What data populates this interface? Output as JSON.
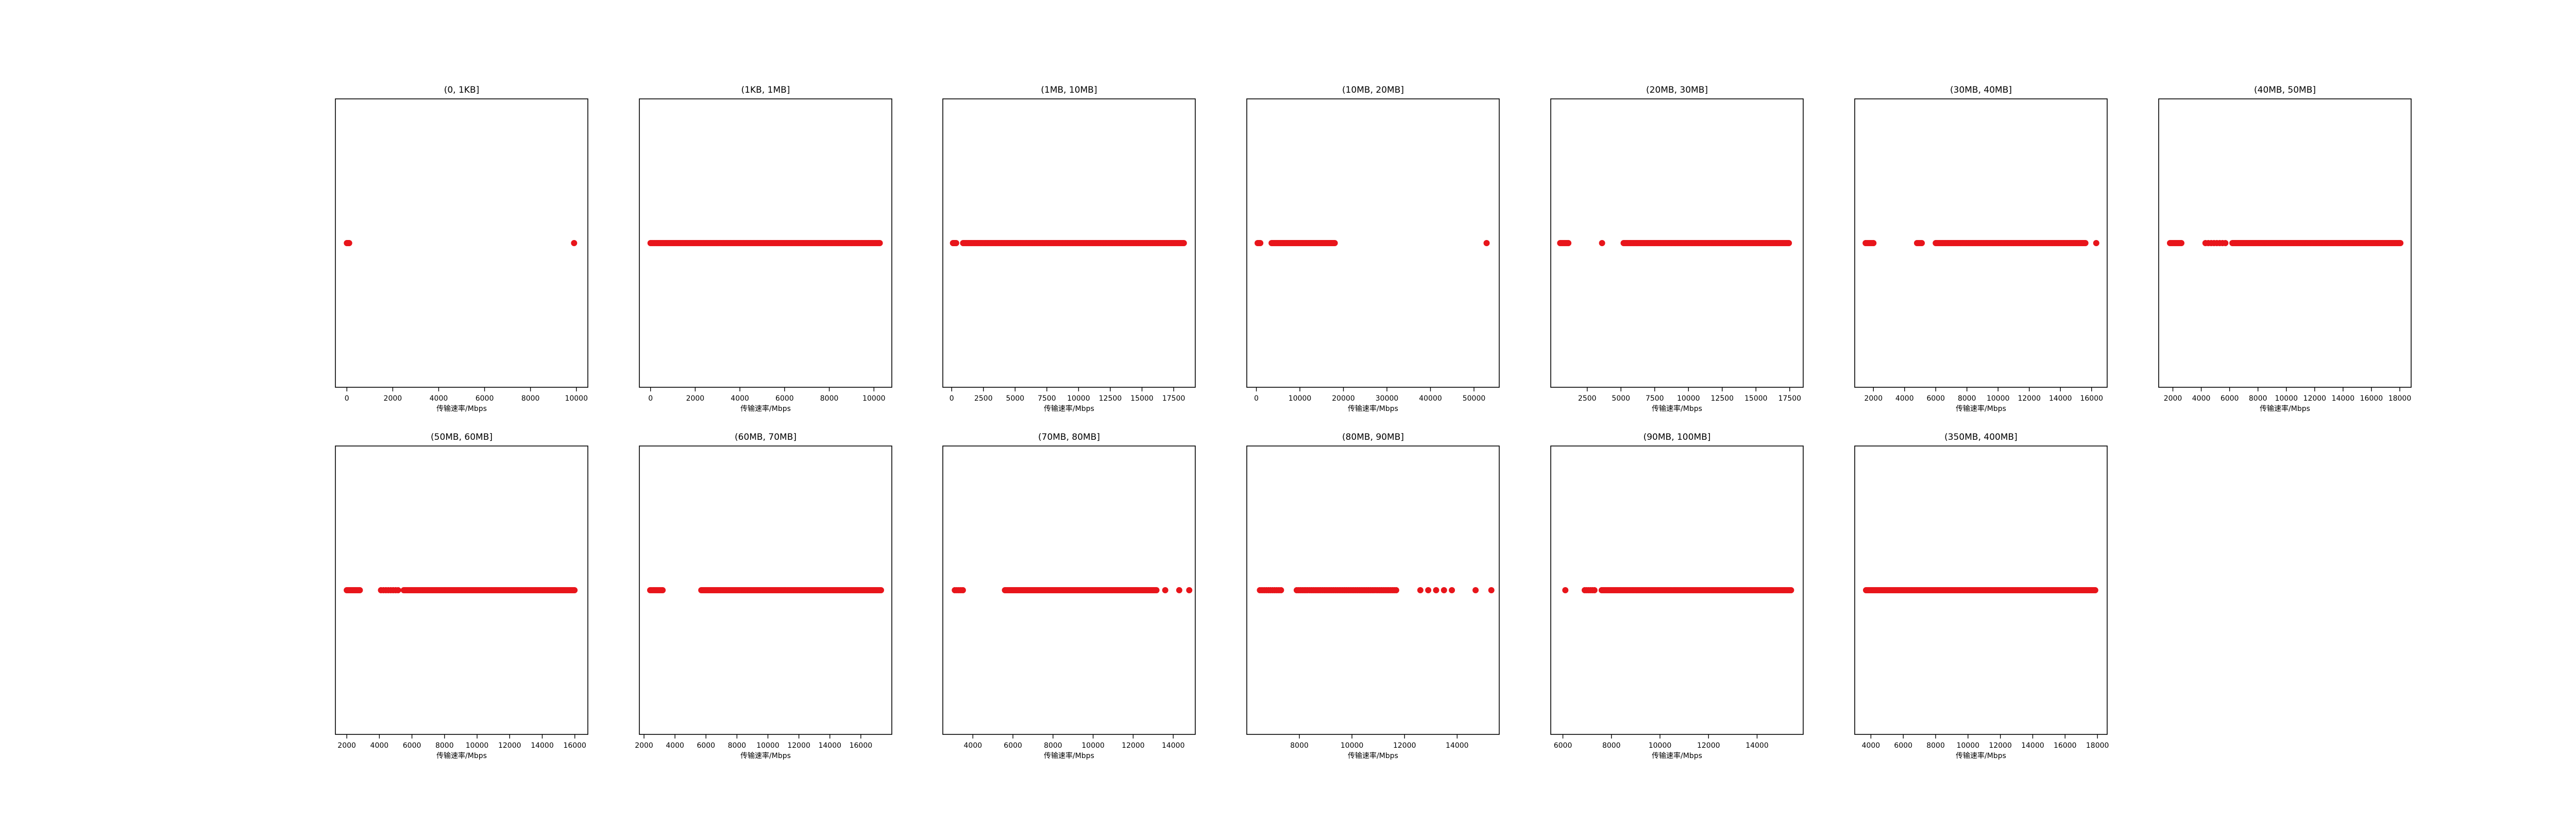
{
  "figure": {
    "point_color": "#e8151b"
  },
  "chart_data": [
    {
      "type": "scatter",
      "title": "(0, 1KB]",
      "xlabel": "传输速率/Mbps",
      "xlim": [
        -500,
        10500
      ],
      "xticks": [
        0,
        2000,
        4000,
        6000,
        8000,
        10000
      ],
      "xtick_labels": [
        "0",
        "2000",
        "4000",
        "6000",
        "8000",
        "10000"
      ],
      "y_value": 0,
      "points": [
        {
          "x": [
            0,
            100
          ],
          "step": 20
        },
        {
          "x": [
            9900
          ],
          "step": 20
        }
      ]
    },
    {
      "type": "scatter",
      "title": "(1KB, 1MB]",
      "xlabel": "传输速率/Mbps",
      "xlim": [
        -500,
        10800
      ],
      "xticks": [
        0,
        2000,
        4000,
        6000,
        8000,
        10000
      ],
      "xtick_labels": [
        "0",
        "2000",
        "4000",
        "6000",
        "8000",
        "10000"
      ],
      "y_value": 0,
      "points": [
        {
          "x": [
            0,
            10300
          ],
          "step": 60
        }
      ]
    },
    {
      "type": "scatter",
      "title": "(1MB, 10MB]",
      "xlabel": "传输速率/Mbps",
      "xlim": [
        -700,
        19200
      ],
      "xticks": [
        0,
        2500,
        5000,
        7500,
        10000,
        12500,
        15000,
        17500
      ],
      "xtick_labels": [
        "0",
        "2500",
        "5000",
        "7500",
        "10000",
        "12500",
        "15000",
        "17500"
      ],
      "y_value": 0,
      "points": [
        {
          "x": [
            100,
            350
          ],
          "step": 50
        },
        {
          "x": [
            900,
            18300
          ],
          "step": 100
        }
      ]
    },
    {
      "type": "scatter",
      "title": "(10MB, 20MB]",
      "xlabel": "传输速率/Mbps",
      "xlim": [
        -2200,
        55800
      ],
      "xticks": [
        0,
        10000,
        20000,
        30000,
        40000,
        50000
      ],
      "xtick_labels": [
        "0",
        "10000",
        "20000",
        "30000",
        "40000",
        "50000"
      ],
      "y_value": 0,
      "points": [
        {
          "x": [
            300,
            1000
          ],
          "step": 200
        },
        {
          "x": [
            3500,
            18000
          ],
          "step": 250
        },
        {
          "x": [
            52900
          ],
          "step": 250
        }
      ]
    },
    {
      "type": "scatter",
      "title": "(20MB, 30MB]",
      "xlabel": "传输速率/Mbps",
      "xlim": [
        -200,
        18500
      ],
      "xticks": [
        2500,
        5000,
        7500,
        10000,
        12500,
        15000,
        17500
      ],
      "xtick_labels": [
        "2500",
        "5000",
        "7500",
        "10000",
        "12500",
        "15000",
        "17500"
      ],
      "y_value": 0,
      "points": [
        {
          "x": [
            500,
            1100
          ],
          "step": 100
        },
        {
          "x": [
            3600
          ],
          "step": 100
        },
        {
          "x": [
            5200,
            17500
          ],
          "step": 90
        }
      ]
    },
    {
      "type": "scatter",
      "title": "(30MB, 40MB]",
      "xlabel": "传输速率/Mbps",
      "xlim": [
        800,
        17000
      ],
      "xticks": [
        2000,
        4000,
        6000,
        8000,
        10000,
        12000,
        14000,
        16000
      ],
      "xtick_labels": [
        "2000",
        "4000",
        "6000",
        "8000",
        "10000",
        "12000",
        "14000",
        "16000"
      ],
      "y_value": 0,
      "points": [
        {
          "x": [
            1500,
            2000
          ],
          "step": 100
        },
        {
          "x": [
            4800,
            5100
          ],
          "step": 100
        },
        {
          "x": [
            6000,
            15600
          ],
          "step": 80
        },
        {
          "x": [
            16300
          ],
          "step": 80
        }
      ]
    },
    {
      "type": "scatter",
      "title": "(40MB, 50MB]",
      "xlabel": "传输速率/Mbps",
      "xlim": [
        1000,
        18800
      ],
      "xticks": [
        2000,
        4000,
        6000,
        8000,
        10000,
        12000,
        14000,
        16000,
        18000
      ],
      "xtick_labels": [
        "2000",
        "4000",
        "6000",
        "8000",
        "10000",
        "12000",
        "14000",
        "16000",
        "18000"
      ],
      "y_value": 0,
      "points": [
        {
          "x": [
            1800,
            2600
          ],
          "step": 100
        },
        {
          "x": [
            4300,
            5700
          ],
          "step": 200
        },
        {
          "x": [
            6200,
            18100
          ],
          "step": 80
        }
      ]
    },
    {
      "type": "scatter",
      "title": "(50MB, 60MB]",
      "xlabel": "传输速率/Mbps",
      "xlim": [
        1300,
        16800
      ],
      "xticks": [
        2000,
        4000,
        6000,
        8000,
        10000,
        12000,
        14000,
        16000
      ],
      "xtick_labels": [
        "2000",
        "4000",
        "6000",
        "8000",
        "10000",
        "12000",
        "14000",
        "16000"
      ],
      "y_value": 0,
      "points": [
        {
          "x": [
            2000,
            2800
          ],
          "step": 80
        },
        {
          "x": [
            4100,
            5200
          ],
          "step": 150
        },
        {
          "x": [
            5500,
            16000
          ],
          "step": 80
        }
      ]
    },
    {
      "type": "scatter",
      "title": "(60MB, 70MB]",
      "xlabel": "传输速率/Mbps",
      "xlim": [
        1700,
        18000
      ],
      "xticks": [
        2000,
        4000,
        6000,
        8000,
        10000,
        12000,
        14000,
        16000
      ],
      "xtick_labels": [
        "2000",
        "4000",
        "6000",
        "8000",
        "10000",
        "12000",
        "14000",
        "16000"
      ],
      "y_value": 0,
      "points": [
        {
          "x": [
            2400,
            3200
          ],
          "step": 100
        },
        {
          "x": [
            5700,
            17300
          ],
          "step": 80
        }
      ]
    },
    {
      "type": "scatter",
      "title": "(70MB, 80MB]",
      "xlabel": "传输速率/Mbps",
      "xlim": [
        2500,
        15100
      ],
      "xticks": [
        4000,
        6000,
        8000,
        10000,
        12000,
        14000
      ],
      "xtick_labels": [
        "4000",
        "6000",
        "8000",
        "10000",
        "12000",
        "14000"
      ],
      "y_value": 0,
      "points": [
        {
          "x": [
            3100,
            3500
          ],
          "step": 100
        },
        {
          "x": [
            5600,
            13200
          ],
          "step": 60
        },
        {
          "x": [
            13600
          ],
          "step": 60
        },
        {
          "x": [
            14300
          ],
          "step": 60
        },
        {
          "x": [
            14800
          ],
          "step": 60
        }
      ]
    },
    {
      "type": "scatter",
      "title": "(80MB, 90MB]",
      "xlabel": "传输速率/Mbps",
      "xlim": [
        6000,
        15600
      ],
      "xticks": [
        8000,
        10000,
        12000,
        14000
      ],
      "xtick_labels": [
        "8000",
        "10000",
        "12000",
        "14000"
      ],
      "y_value": 0,
      "points": [
        {
          "x": [
            6500,
            7300
          ],
          "step": 80
        },
        {
          "x": [
            7900,
            11700
          ],
          "step": 70
        },
        {
          "x": [
            12600,
            13900
          ],
          "step": 300
        },
        {
          "x": [
            14700
          ],
          "step": 300
        },
        {
          "x": [
            15300
          ],
          "step": 300
        }
      ]
    },
    {
      "type": "scatter",
      "title": "(90MB, 100MB]",
      "xlabel": "传输速率/Mbps",
      "xlim": [
        5500,
        15900
      ],
      "xticks": [
        6000,
        8000,
        10000,
        12000,
        14000
      ],
      "xtick_labels": [
        "6000",
        "8000",
        "10000",
        "12000",
        "14000"
      ],
      "y_value": 0,
      "points": [
        {
          "x": [
            6100
          ],
          "step": 80
        },
        {
          "x": [
            6900,
            7300
          ],
          "step": 80
        },
        {
          "x": [
            7600,
            15400
          ],
          "step": 60
        }
      ]
    },
    {
      "type": "scatter",
      "title": "(350MB, 400MB]",
      "xlabel": "传输速率/Mbps",
      "xlim": [
        3000,
        18600
      ],
      "xticks": [
        4000,
        6000,
        8000,
        10000,
        12000,
        14000,
        16000,
        18000
      ],
      "xtick_labels": [
        "4000",
        "6000",
        "8000",
        "10000",
        "12000",
        "14000",
        "16000",
        "18000"
      ],
      "y_value": 0,
      "points": [
        {
          "x": [
            3700,
            17900
          ],
          "step": 80
        }
      ]
    }
  ]
}
